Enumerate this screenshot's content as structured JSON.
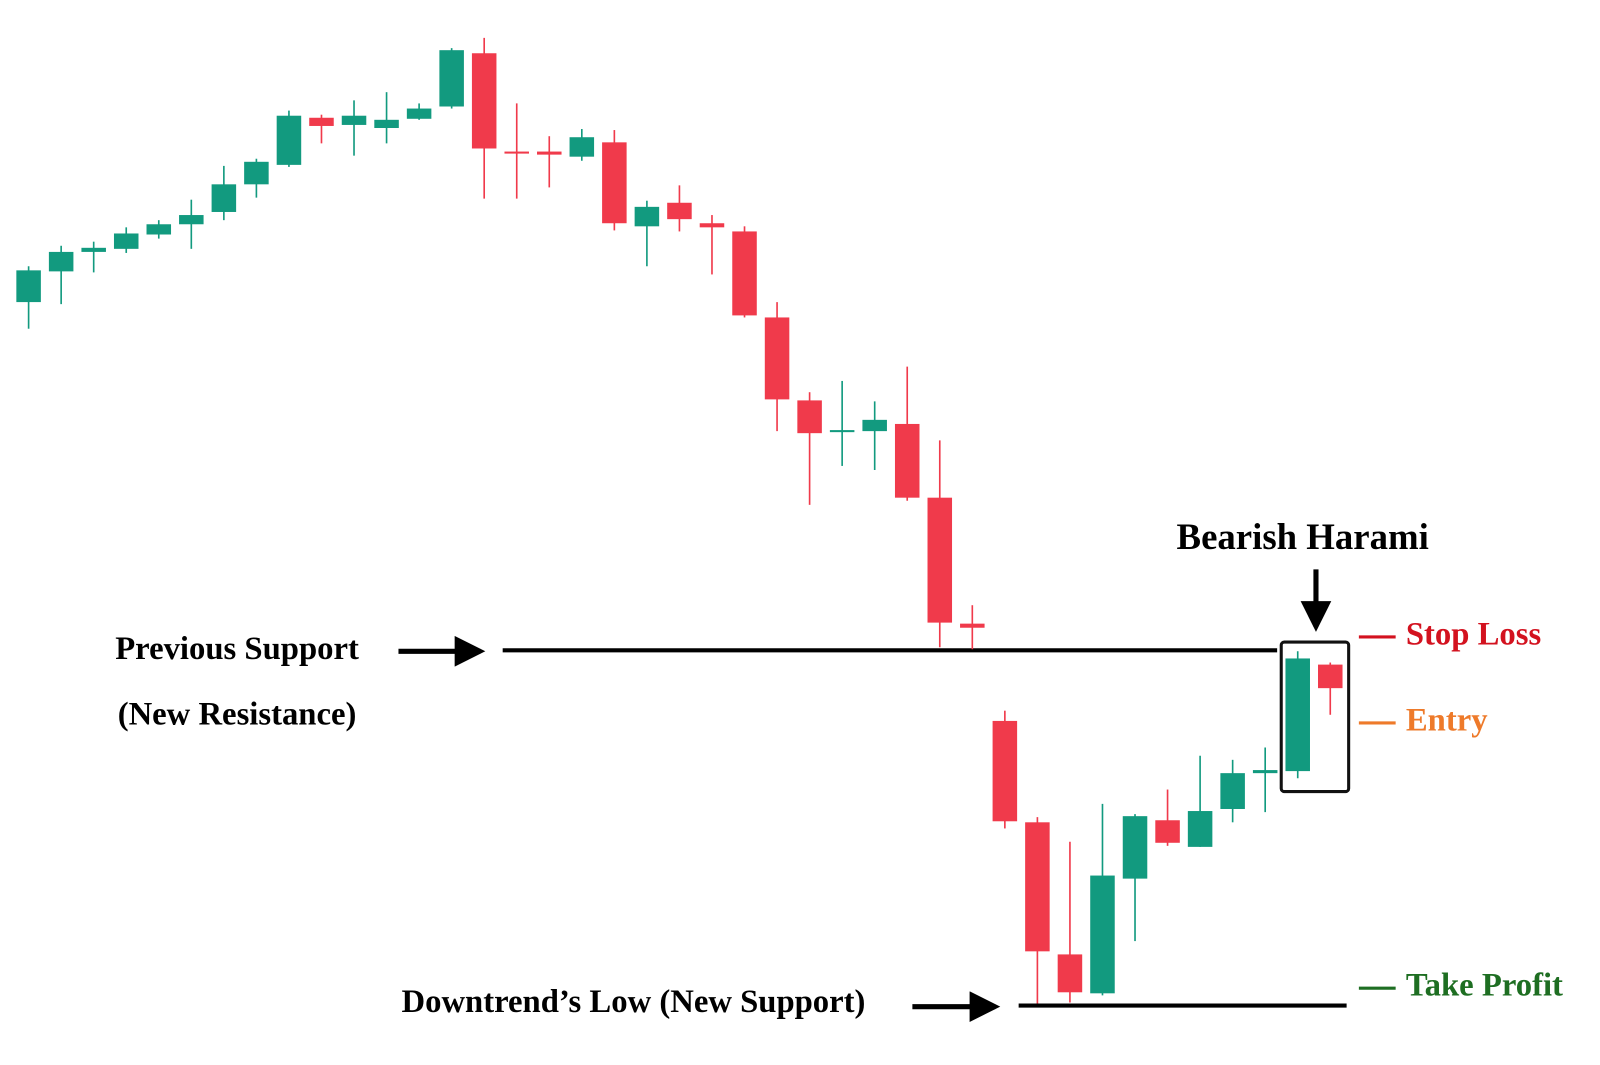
{
  "chart_data": {
    "type": "candlestick",
    "title": "Bearish Harami",
    "categories": [
      null,
      null,
      null,
      null,
      null,
      null,
      null,
      null,
      null,
      null,
      null,
      null,
      null,
      null,
      null,
      null,
      null,
      null,
      null,
      null,
      null,
      null,
      null,
      null,
      null,
      null,
      null,
      null,
      null,
      null,
      null,
      null,
      null,
      null,
      null,
      null,
      null,
      null,
      null,
      null,
      null
    ],
    "open": [
      745,
      775,
      794,
      797,
      811,
      821,
      833,
      860,
      879,
      925,
      918,
      915,
      924,
      936,
      988,
      892,
      892,
      887,
      901,
      819,
      842,
      822,
      814,
      730,
      649,
      619,
      619,
      626,
      554,
      431,
      336,
      237,
      108,
      70,
      182,
      239,
      213,
      250,
      285,
      287,
      391
    ],
    "high": [
      780,
      800,
      804,
      818,
      825,
      845,
      878,
      885,
      932,
      928,
      942,
      950,
      939,
      993,
      1003,
      939,
      907,
      914,
      913,
      844,
      859,
      830,
      819,
      745,
      657,
      668,
      648,
      682,
      610,
      449,
      346,
      242,
      218,
      255,
      245,
      269,
      302,
      298,
      310,
      404,
      393
    ],
    "low": [
      719,
      743,
      774,
      793,
      807,
      797,
      825,
      847,
      877,
      900,
      888,
      900,
      923,
      934,
      846,
      846,
      857,
      883,
      815,
      780,
      814,
      772,
      730,
      619,
      547,
      585,
      581,
      551,
      408,
      406,
      231,
      60,
      61,
      68,
      121,
      214,
      213,
      237,
      247,
      280,
      342
    ],
    "close": [
      776,
      794,
      798,
      812,
      821,
      830,
      860,
      882,
      927,
      917,
      927,
      923,
      934,
      991,
      895,
      891,
      889,
      906,
      822,
      838,
      826,
      818,
      732,
      650,
      617,
      620,
      630,
      554,
      432,
      427,
      238,
      111,
      71,
      185,
      243,
      217,
      248,
      285,
      288,
      397,
      368
    ],
    "up_color": "#129a7f",
    "down_color": "#f03a4b",
    "ylim": [
      0,
      1040
    ],
    "reference_lines": [
      {
        "value": 405,
        "label": "Previous Support",
        "sublabel": "(New Resistance)"
      },
      {
        "value": 58,
        "label": "Downtrend’s Low (New Support)"
      }
    ],
    "trade_levels": [
      {
        "label": "Stop Loss",
        "value": 418,
        "color": "#d3121f"
      },
      {
        "label": "Entry",
        "value": 334,
        "color": "#ee7a2a"
      },
      {
        "label": "Take Profit",
        "value": 75,
        "color": "#1e6e22"
      }
    ]
  }
}
